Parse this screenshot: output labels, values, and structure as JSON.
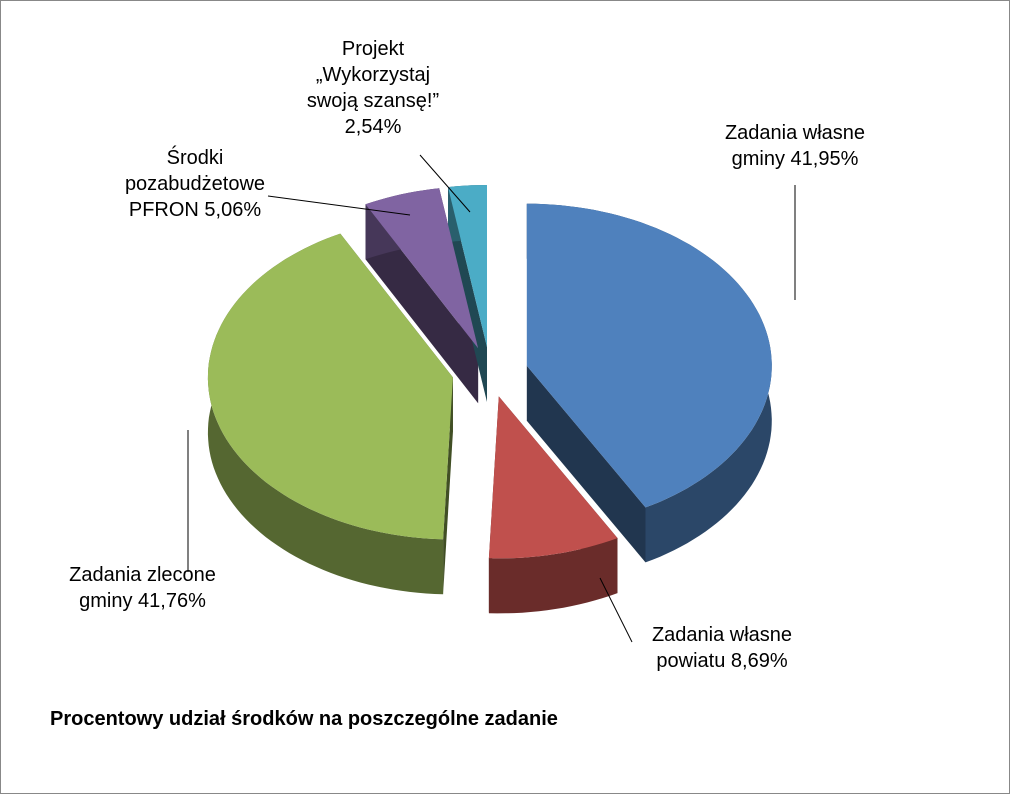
{
  "chart_data": {
    "type": "pie",
    "title": "Procentowy udział środków na poszczególne zadanie",
    "categories": [
      "Zadania własne gminy",
      "Zadania własne powiatu",
      "Zadania zlecone gminy",
      "Środki pozabudżetowe PFRON",
      "Projekt „Wykorzystaj swoją szansę!”"
    ],
    "values": [
      41.95,
      8.69,
      41.76,
      5.06,
      2.54
    ],
    "value_labels": [
      "41,95%",
      "8,69%",
      "41,76%",
      "5,06%",
      "2,54%"
    ],
    "colors": [
      "#4f81bd",
      "#c0504d",
      "#9bbb59",
      "#8064a2",
      "#4bacc6"
    ]
  }
}
